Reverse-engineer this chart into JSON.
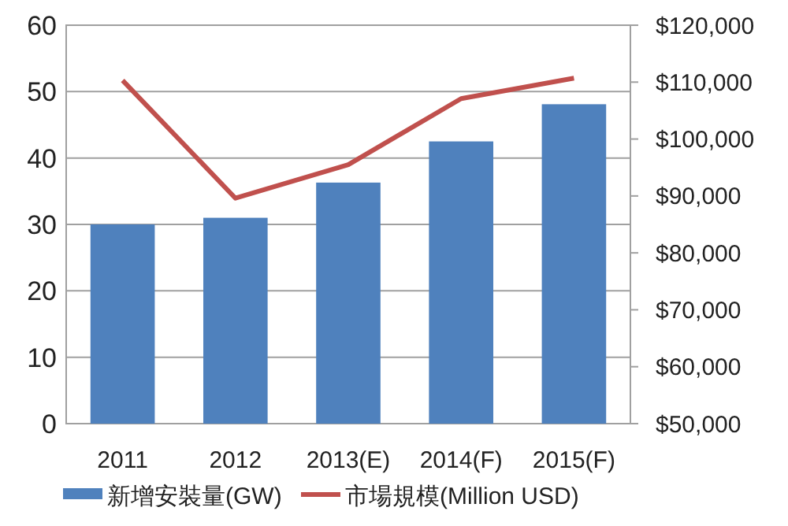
{
  "chart_data": {
    "type": "bar",
    "categories": [
      "2011",
      "2012",
      "2013(E)",
      "2014(F)",
      "2015(F)"
    ],
    "series": [
      {
        "name": "新增安裝量(GW)",
        "color": "#4f81bd",
        "values": [
          30,
          31,
          36.3,
          42.5,
          48.1
        ]
      },
      {
        "name": "市場規模(Million USD)",
        "type": "line",
        "axis": "y2",
        "color": "#c0504d",
        "values": [
          110300,
          89600,
          95500,
          107100,
          110700
        ]
      }
    ],
    "ylim": [
      0,
      60
    ],
    "yticks": [
      0,
      10,
      20,
      30,
      40,
      50,
      60
    ],
    "y2lim": [
      50000,
      120000
    ],
    "y2ticks": [
      {
        "value": 50000,
        "label": "$50,000"
      },
      {
        "value": 60000,
        "label": "$60,000"
      },
      {
        "value": 70000,
        "label": "$70,000"
      },
      {
        "value": 80000,
        "label": "$80,000"
      },
      {
        "value": 90000,
        "label": "$90,000"
      },
      {
        "value": 100000,
        "label": "$100,000"
      },
      {
        "value": 110000,
        "label": "$110,000"
      },
      {
        "value": 120000,
        "label": "$120,000"
      }
    ],
    "grid": "y",
    "legend": "bottom",
    "marker": "none",
    "line_style": "solid"
  }
}
